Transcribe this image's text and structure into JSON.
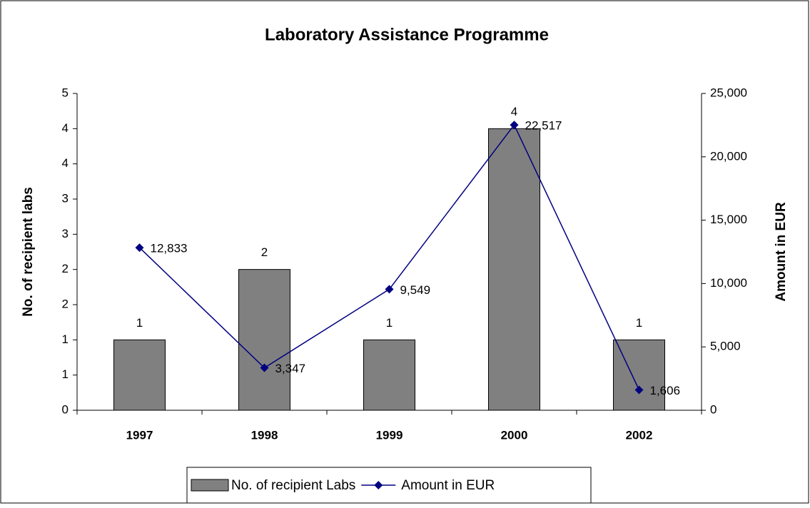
{
  "chart_data": {
    "type": "bar",
    "title": "Laboratory Assistance Programme",
    "categories": [
      "1997",
      "1998",
      "1999",
      "2000",
      "2002"
    ],
    "ylabel": "No. of recipient labs",
    "y2label": "Amount in EUR",
    "ylim": [
      0,
      4.5
    ],
    "yticks": [
      0,
      {
        "value": 0.5,
        "label": "1"
      },
      1,
      {
        "value": 1.5,
        "label": "2"
      },
      2,
      {
        "value": 2.5,
        "label": "3"
      },
      3,
      {
        "value": 3.5,
        "label": "4"
      },
      4,
      {
        "value": 4.5,
        "label": "5"
      }
    ],
    "y2lim": [
      0,
      25000
    ],
    "y2ticks": [
      0,
      {
        "value": 5000,
        "label": "5,000"
      },
      {
        "value": 10000,
        "label": "10,000"
      },
      {
        "value": 15000,
        "label": "15,000"
      },
      {
        "value": 20000,
        "label": "20,000"
      },
      {
        "value": 25000,
        "label": "25,000"
      }
    ],
    "legend": "bottom",
    "series": [
      {
        "name": "No. of recipient Labs",
        "type": "bar",
        "color": "#808080",
        "values": [
          1,
          2,
          1,
          4,
          1
        ]
      },
      {
        "name": "Amount in EUR",
        "type": "line",
        "axis": "y2",
        "color": "#000080",
        "values": [
          12833,
          3347,
          9549,
          22517,
          1606
        ],
        "value_labels": [
          "12,833",
          "3,347",
          "9,549",
          "22,517",
          "1,606"
        ]
      }
    ]
  }
}
